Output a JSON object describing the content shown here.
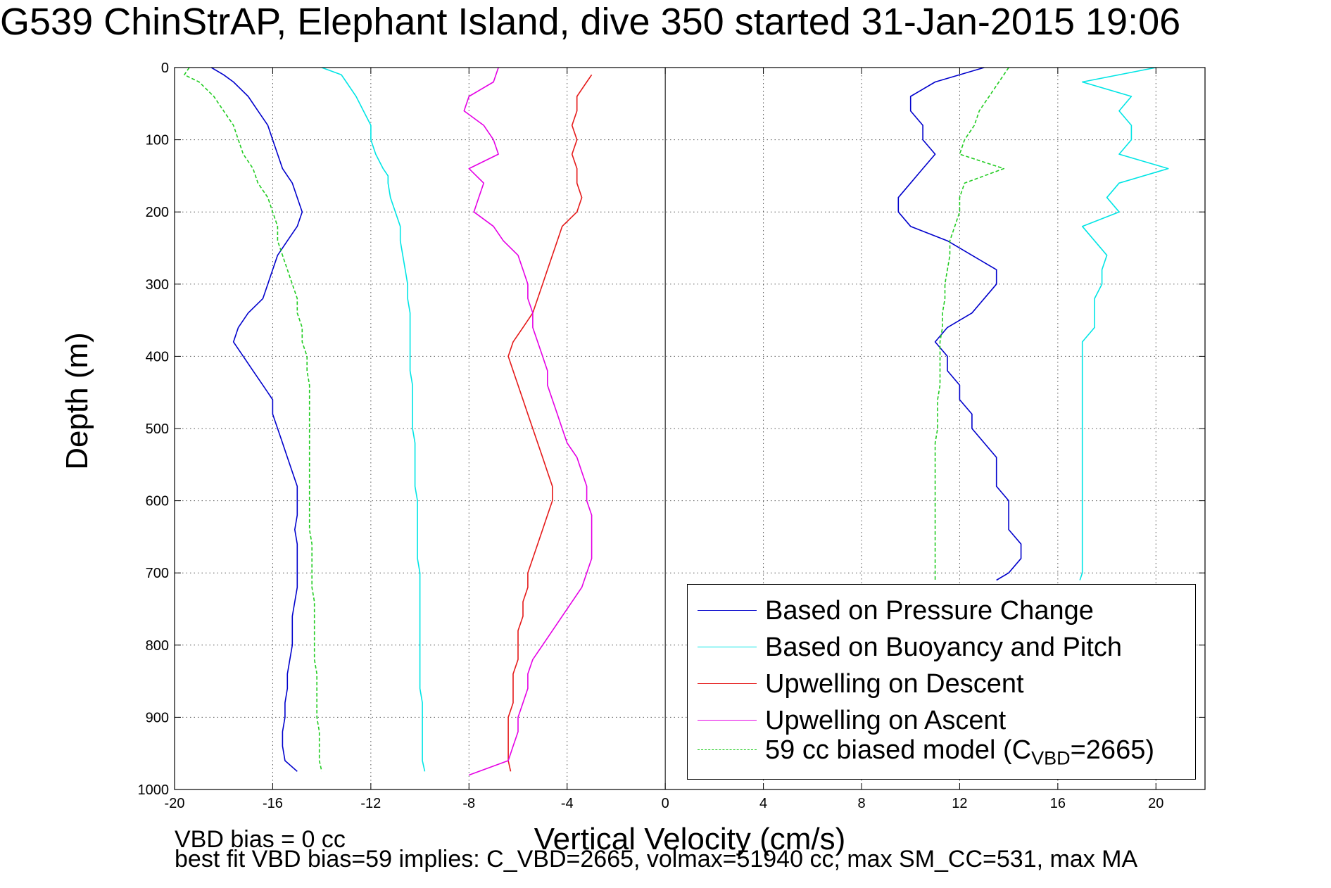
{
  "chart_data": {
    "type": "line",
    "title": "G539 ChinStrAP, Elephant Island, dive 350 started 31-Jan-2015 19:06",
    "xlabel": "Vertical Velocity (cm/s)",
    "ylabel": "Depth (m)",
    "xlim": [
      -20,
      22
    ],
    "ylim": [
      0,
      1000
    ],
    "y_reversed": true,
    "grid": true,
    "legend_position": "bottom-right",
    "x_ticks": [
      "-20",
      "-16",
      "-12",
      "-8",
      "-4",
      "0",
      "4",
      "8",
      "12",
      "16",
      "20"
    ],
    "y_ticks": [
      "0",
      "100",
      "200",
      "300",
      "400",
      "500",
      "600",
      "700",
      "800",
      "900",
      "1000"
    ],
    "legend": [
      {
        "label": "Based on Pressure Change",
        "color": "#0000cc",
        "style": "solid"
      },
      {
        "label": "Based on Buoyancy and Pitch",
        "color": "#00e5e5",
        "style": "solid"
      },
      {
        "label": "Upwelling on Descent",
        "color": "#e51919",
        "style": "solid"
      },
      {
        "label": "Upwelling on Ascent",
        "color": "#e500e5",
        "style": "solid"
      },
      {
        "label": "59 cc biased model",
        "label_pre": "59 cc biased model (C",
        "label_sub": "VBD",
        "label_post": "=2665)",
        "color": "#22cc22",
        "style": "dashed"
      }
    ],
    "series": [
      {
        "name": "Based on Pressure Change",
        "segment": "descent",
        "color": "#0000cc",
        "depth": [
          0,
          10,
          20,
          40,
          60,
          80,
          100,
          120,
          140,
          160,
          180,
          200,
          220,
          240,
          260,
          280,
          300,
          320,
          340,
          360,
          380,
          400,
          420,
          440,
          460,
          480,
          500,
          520,
          540,
          560,
          580,
          600,
          620,
          640,
          660,
          680,
          700,
          720,
          740,
          760,
          780,
          800,
          820,
          840,
          860,
          880,
          900,
          920,
          940,
          960,
          975
        ],
        "velocity": [
          -18.5,
          -18.0,
          -17.6,
          -17.0,
          -16.6,
          -16.2,
          -16.0,
          -15.8,
          -15.6,
          -15.2,
          -15.0,
          -14.8,
          -15.0,
          -15.4,
          -15.8,
          -16.0,
          -16.2,
          -16.4,
          -17.0,
          -17.4,
          -17.6,
          -17.2,
          -16.8,
          -16.4,
          -16.0,
          -16.0,
          -15.8,
          -15.6,
          -15.4,
          -15.2,
          -15.0,
          -15.0,
          -15.0,
          -15.1,
          -15.0,
          -15.0,
          -15.0,
          -15.0,
          -15.1,
          -15.2,
          -15.2,
          -15.2,
          -15.3,
          -15.4,
          -15.4,
          -15.5,
          -15.5,
          -15.6,
          -15.6,
          -15.5,
          -15.0
        ]
      },
      {
        "name": "Based on Pressure Change",
        "segment": "ascent",
        "color": "#0000cc",
        "depth": [
          0,
          20,
          40,
          60,
          80,
          100,
          120,
          140,
          160,
          180,
          200,
          220,
          240,
          260,
          280,
          300,
          320,
          340,
          360,
          380,
          400,
          420,
          440,
          460,
          480,
          500,
          520,
          540,
          560,
          580,
          600,
          620,
          640,
          660,
          680,
          700,
          710
        ],
        "velocity": [
          13.0,
          11.0,
          10.0,
          10.0,
          10.5,
          10.5,
          11.0,
          10.5,
          10.0,
          9.5,
          9.5,
          10.0,
          11.5,
          12.5,
          13.5,
          13.5,
          13.0,
          12.5,
          11.5,
          11.0,
          11.5,
          11.5,
          12.0,
          12.0,
          12.5,
          12.5,
          13.0,
          13.5,
          13.5,
          13.5,
          14.0,
          14.0,
          14.0,
          14.5,
          14.5,
          14.0,
          13.5
        ]
      },
      {
        "name": "Based on Buoyancy and Pitch",
        "segment": "descent",
        "color": "#00e5e5",
        "depth": [
          0,
          10,
          20,
          40,
          60,
          80,
          100,
          120,
          140,
          150,
          160,
          180,
          200,
          220,
          240,
          260,
          280,
          300,
          320,
          340,
          360,
          380,
          400,
          420,
          440,
          460,
          480,
          500,
          520,
          540,
          560,
          580,
          600,
          620,
          640,
          660,
          680,
          700,
          720,
          740,
          760,
          780,
          800,
          820,
          840,
          860,
          880,
          900,
          920,
          940,
          960,
          975
        ],
        "velocity": [
          -14.0,
          -13.2,
          -13.0,
          -12.6,
          -12.3,
          -12.0,
          -12.0,
          -11.8,
          -11.5,
          -11.3,
          -11.3,
          -11.2,
          -11.0,
          -10.8,
          -10.8,
          -10.7,
          -10.6,
          -10.5,
          -10.5,
          -10.4,
          -10.4,
          -10.4,
          -10.4,
          -10.4,
          -10.3,
          -10.3,
          -10.3,
          -10.3,
          -10.2,
          -10.2,
          -10.2,
          -10.2,
          -10.1,
          -10.1,
          -10.1,
          -10.1,
          -10.1,
          -10.0,
          -10.0,
          -10.0,
          -10.0,
          -10.0,
          -10.0,
          -10.0,
          -10.0,
          -10.0,
          -9.9,
          -9.9,
          -9.9,
          -9.9,
          -9.9,
          -9.8
        ]
      },
      {
        "name": "Based on Buoyancy and Pitch",
        "segment": "ascent",
        "color": "#00e5e5",
        "depth": [
          0,
          20,
          40,
          60,
          80,
          100,
          120,
          140,
          160,
          180,
          200,
          220,
          240,
          260,
          280,
          300,
          320,
          340,
          360,
          380,
          400,
          420,
          440,
          460,
          480,
          500,
          520,
          540,
          560,
          580,
          600,
          620,
          640,
          660,
          680,
          700,
          710
        ],
        "velocity": [
          20.0,
          17.0,
          19.0,
          18.5,
          19.0,
          19.0,
          18.5,
          20.5,
          18.5,
          18.0,
          18.5,
          17.0,
          17.5,
          18.0,
          17.8,
          17.8,
          17.5,
          17.5,
          17.5,
          17.0,
          17.0,
          17.0,
          17.0,
          17.0,
          17.0,
          17.0,
          17.0,
          17.0,
          17.0,
          17.0,
          17.0,
          17.0,
          17.0,
          17.0,
          17.0,
          17.0,
          16.9
        ]
      },
      {
        "name": "Upwelling on Descent",
        "color": "#e51919",
        "depth": [
          10,
          20,
          40,
          60,
          80,
          100,
          120,
          140,
          160,
          180,
          200,
          220,
          240,
          260,
          280,
          300,
          320,
          340,
          360,
          380,
          400,
          420,
          440,
          460,
          480,
          500,
          520,
          540,
          560,
          580,
          600,
          620,
          640,
          660,
          680,
          700,
          720,
          740,
          760,
          780,
          800,
          820,
          840,
          860,
          880,
          900,
          920,
          940,
          960,
          975
        ],
        "velocity": [
          -3.0,
          -3.2,
          -3.6,
          -3.6,
          -3.8,
          -3.6,
          -3.8,
          -3.6,
          -3.6,
          -3.4,
          -3.6,
          -4.2,
          -4.4,
          -4.6,
          -4.8,
          -5.0,
          -5.2,
          -5.4,
          -5.8,
          -6.2,
          -6.4,
          -6.2,
          -6.0,
          -5.8,
          -5.6,
          -5.4,
          -5.2,
          -5.0,
          -4.8,
          -4.6,
          -4.6,
          -4.8,
          -5.0,
          -5.2,
          -5.4,
          -5.6,
          -5.6,
          -5.8,
          -5.8,
          -6.0,
          -6.0,
          -6.0,
          -6.2,
          -6.2,
          -6.2,
          -6.4,
          -6.4,
          -6.4,
          -6.4,
          -6.3
        ]
      },
      {
        "name": "Upwelling on Ascent",
        "color": "#e500e5",
        "depth": [
          0,
          20,
          40,
          60,
          80,
          100,
          120,
          140,
          160,
          180,
          200,
          220,
          240,
          260,
          280,
          300,
          320,
          340,
          360,
          380,
          400,
          420,
          440,
          460,
          480,
          500,
          520,
          540,
          560,
          580,
          600,
          620,
          640,
          660,
          680,
          700,
          720,
          740,
          760,
          780,
          800,
          820,
          840,
          860,
          880,
          900,
          920,
          940,
          960,
          980
        ],
        "velocity": [
          -6.8,
          -7.0,
          -8.0,
          -8.2,
          -7.4,
          -7.0,
          -6.8,
          -8.0,
          -7.4,
          -7.6,
          -7.8,
          -7.0,
          -6.6,
          -6.0,
          -5.8,
          -5.6,
          -5.6,
          -5.4,
          -5.4,
          -5.2,
          -5.0,
          -4.8,
          -4.8,
          -4.6,
          -4.4,
          -4.2,
          -4.0,
          -3.6,
          -3.4,
          -3.2,
          -3.2,
          -3.0,
          -3.0,
          -3.0,
          -3.0,
          -3.2,
          -3.4,
          -3.8,
          -4.2,
          -4.6,
          -5.0,
          -5.4,
          -5.6,
          -5.6,
          -5.8,
          -6.0,
          -6.0,
          -6.2,
          -6.4,
          -8.0
        ]
      },
      {
        "name": "59 cc biased model",
        "segment": "descent",
        "color": "#22cc22",
        "depth": [
          0,
          10,
          20,
          40,
          60,
          80,
          100,
          120,
          140,
          160,
          180,
          200,
          220,
          240,
          260,
          280,
          300,
          320,
          340,
          360,
          380,
          400,
          420,
          440,
          460,
          480,
          500,
          520,
          540,
          560,
          580,
          600,
          620,
          640,
          660,
          680,
          700,
          720,
          740,
          760,
          780,
          800,
          820,
          840,
          860,
          880,
          900,
          920,
          940,
          960,
          975
        ],
        "velocity": [
          -19.4,
          -19.6,
          -19.0,
          -18.4,
          -18.0,
          -17.6,
          -17.4,
          -17.2,
          -16.8,
          -16.6,
          -16.2,
          -16.0,
          -15.8,
          -15.8,
          -15.6,
          -15.4,
          -15.2,
          -15.0,
          -15.0,
          -14.8,
          -14.8,
          -14.6,
          -14.6,
          -14.5,
          -14.5,
          -14.5,
          -14.5,
          -14.5,
          -14.5,
          -14.5,
          -14.5,
          -14.5,
          -14.5,
          -14.5,
          -14.4,
          -14.4,
          -14.4,
          -14.4,
          -14.3,
          -14.3,
          -14.3,
          -14.3,
          -14.3,
          -14.2,
          -14.2,
          -14.2,
          -14.2,
          -14.1,
          -14.1,
          -14.1,
          -14.0
        ]
      },
      {
        "name": "59 cc biased model",
        "segment": "ascent",
        "color": "#22cc22",
        "depth": [
          0,
          20,
          40,
          60,
          80,
          100,
          120,
          140,
          160,
          180,
          200,
          220,
          240,
          260,
          280,
          300,
          320,
          340,
          360,
          380,
          400,
          420,
          440,
          460,
          480,
          500,
          520,
          540,
          560,
          580,
          600,
          620,
          640,
          660,
          680,
          700,
          710
        ],
        "velocity": [
          14.0,
          13.6,
          13.2,
          12.8,
          12.6,
          12.2,
          12.0,
          13.8,
          12.2,
          12.0,
          12.0,
          11.8,
          11.6,
          11.6,
          11.5,
          11.4,
          11.4,
          11.3,
          11.3,
          11.2,
          11.2,
          11.2,
          11.2,
          11.1,
          11.1,
          11.1,
          11.0,
          11.0,
          11.0,
          11.0,
          11.0,
          11.0,
          11.0,
          11.0,
          11.0,
          11.0,
          11.0
        ]
      }
    ]
  },
  "footer": {
    "line1": "VBD bias = 0 cc",
    "line2": "best fit VBD bias=59 implies: C_VBD=2665, volmax=51940 cc, max SM_CC=531, max MA"
  }
}
